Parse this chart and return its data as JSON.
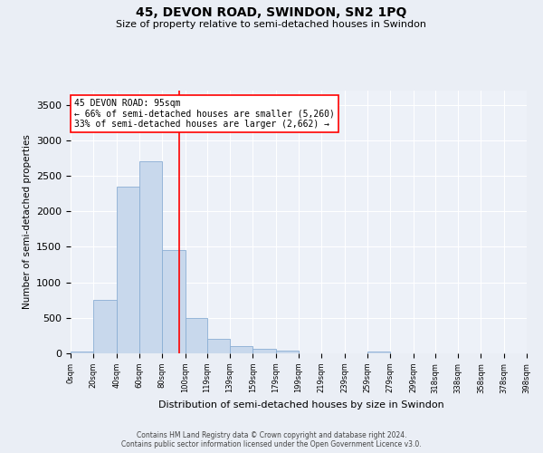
{
  "title": "45, DEVON ROAD, SWINDON, SN2 1PQ",
  "subtitle": "Size of property relative to semi-detached houses in Swindon",
  "xlabel": "Distribution of semi-detached houses by size in Swindon",
  "ylabel": "Number of semi-detached properties",
  "bin_edges": [
    0,
    20,
    40,
    60,
    80,
    100,
    119,
    139,
    159,
    179,
    199,
    219,
    239,
    259,
    279,
    299,
    318,
    338,
    358,
    378,
    398
  ],
  "bar_heights": [
    30,
    750,
    2350,
    2700,
    1450,
    500,
    200,
    100,
    60,
    40,
    0,
    0,
    0,
    20,
    0,
    0,
    0,
    0,
    0,
    0
  ],
  "bar_color": "#c8d8ec",
  "bar_edge_color": "#8aaed4",
  "property_line_x": 95,
  "property_sqm": 95,
  "pct_smaller": 66,
  "n_smaller": 5260,
  "pct_larger": 33,
  "n_larger": 2662,
  "annotation_line1": "45 DEVON ROAD: 95sqm",
  "annotation_line2": "← 66% of semi-detached houses are smaller (5,260)",
  "annotation_line3": "33% of semi-detached houses are larger (2,662) →",
  "ylim": [
    0,
    3700
  ],
  "yticks": [
    0,
    500,
    1000,
    1500,
    2000,
    2500,
    3000,
    3500
  ],
  "bg_color": "#eaeef5",
  "plot_bg_color": "#edf1f8",
  "grid_color": "#ffffff",
  "footer_line1": "Contains HM Land Registry data © Crown copyright and database right 2024.",
  "footer_line2": "Contains public sector information licensed under the Open Government Licence v3.0."
}
